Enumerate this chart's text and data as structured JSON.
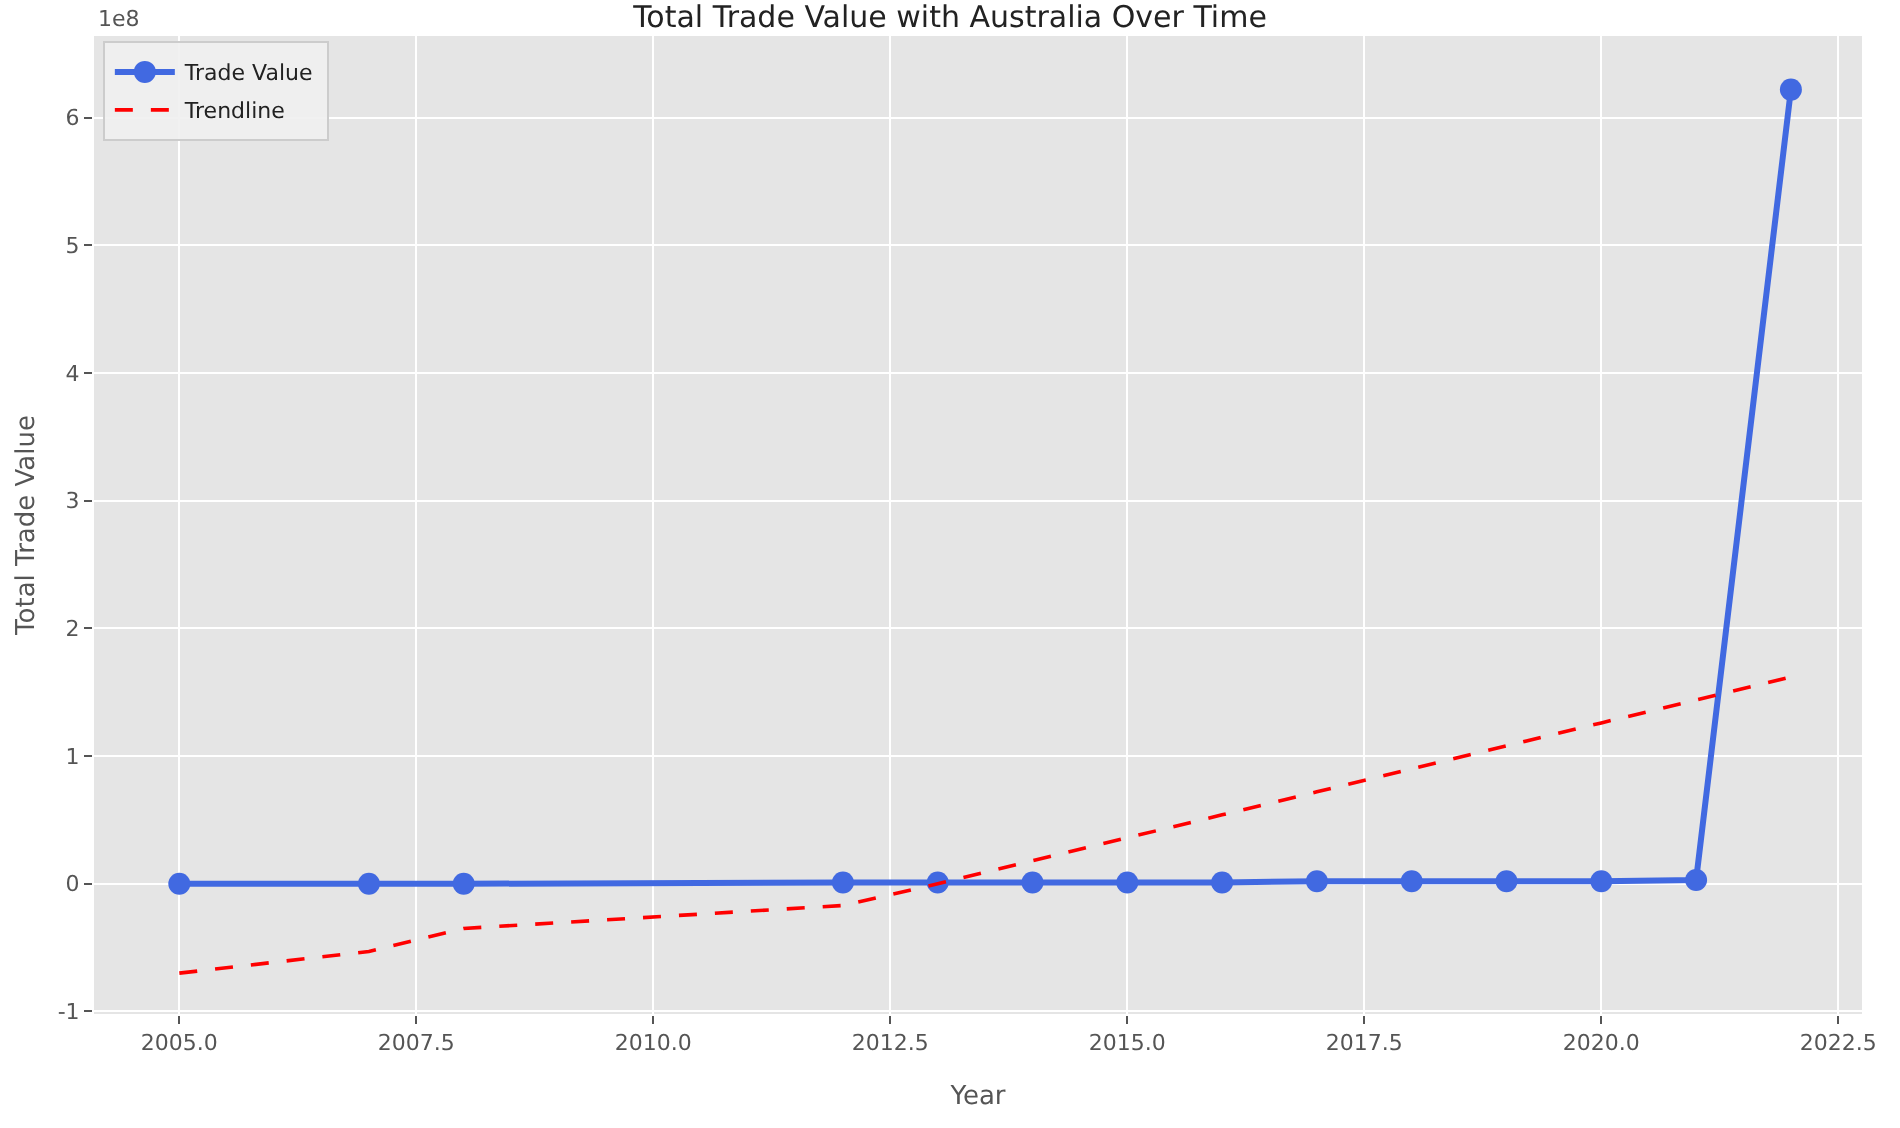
{
  "chart_data": {
    "type": "line",
    "title": "Total Trade Value with Australia Over Time",
    "xlabel": "Year",
    "ylabel": "Total Trade Value",
    "annotations": [
      "1e8"
    ],
    "x": [
      2005,
      2007,
      2008,
      2012,
      2013,
      2014,
      2015,
      2016,
      2017,
      2018,
      2019,
      2020,
      2021,
      2022
    ],
    "series": [
      {
        "name": "Trade Value",
        "color": "#4169e1",
        "marker": "circle",
        "line_style": "solid",
        "values": [
          0,
          0,
          0,
          0.01,
          0.01,
          0.01,
          0.01,
          0.01,
          0.02,
          0.02,
          0.02,
          0.02,
          0.03,
          6.22
        ]
      },
      {
        "name": "Trendline",
        "color": "#ff0000",
        "marker": "none",
        "line_style": "dashed",
        "values": [
          -0.7,
          -0.53,
          -0.35,
          -0.17,
          0.0,
          0.18,
          0.36,
          0.54,
          0.72,
          0.9,
          1.08,
          1.26,
          1.44,
          1.62
        ]
      }
    ],
    "xlim": [
      2004.1,
      2022.75
    ],
    "ylim": [
      -1.02,
      6.64
    ],
    "xticks": [
      {
        "value": 2005,
        "label": "2005.0"
      },
      {
        "value": 2007.5,
        "label": "2007.5"
      },
      {
        "value": 2010,
        "label": "2010.0"
      },
      {
        "value": 2012.5,
        "label": "2012.5"
      },
      {
        "value": 2015,
        "label": "2015.0"
      },
      {
        "value": 2017.5,
        "label": "2017.5"
      },
      {
        "value": 2020,
        "label": "2020.0"
      },
      {
        "value": 2022.5,
        "label": "2022.5"
      }
    ],
    "yticks": [
      -1,
      0,
      1,
      2,
      3,
      4,
      5,
      6
    ],
    "grid": true,
    "legend": "top left"
  }
}
